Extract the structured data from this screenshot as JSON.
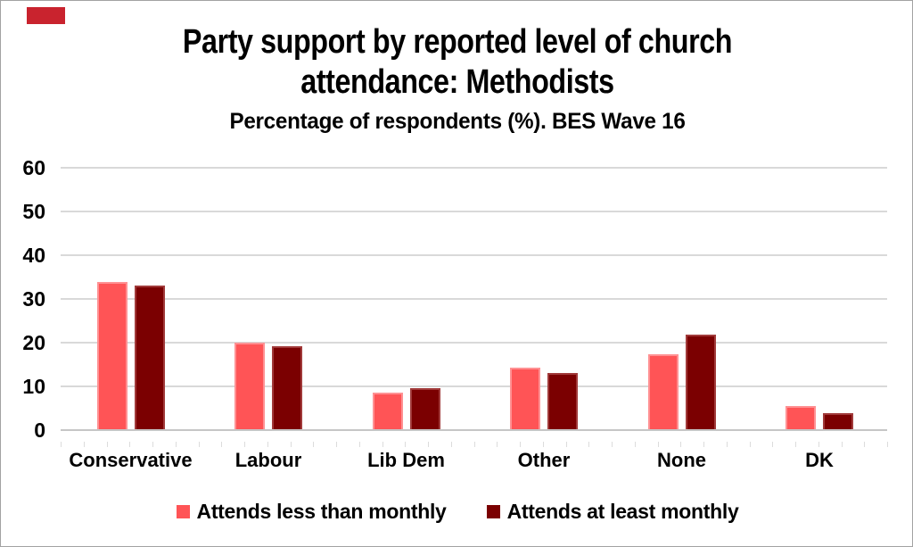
{
  "red_marker": {
    "color": "#c9232e"
  },
  "title": {
    "line1": "Party support by reported level of church",
    "line2": "attendance: Methodists",
    "subtitle": "Percentage of respondents (%). BES Wave 16"
  },
  "chart_data": {
    "type": "bar",
    "title": "Party support by reported level of church attendance: Methodists",
    "subtitle": "Percentage of respondents (%). BES Wave 16",
    "categories": [
      "Conservative",
      "Labour",
      "Lib Dem",
      "Other",
      "None",
      "DK"
    ],
    "series": [
      {
        "name": "Attends less than monthly",
        "color": "#ff5456",
        "border_color": "#ff9193",
        "values": [
          33.8,
          19.8,
          8.5,
          14.2,
          17.3,
          5.5
        ]
      },
      {
        "name": "Attends at least monthly",
        "color": "#7b0001",
        "border_color": "#a13a3a",
        "values": [
          32.9,
          19.0,
          9.4,
          13.0,
          21.7,
          3.7
        ]
      }
    ],
    "xlabel": "",
    "ylabel": "",
    "ylim": [
      0,
      60
    ],
    "yticks": [
      0,
      10,
      20,
      30,
      40,
      50,
      60
    ],
    "grid": true,
    "legend_position": "bottom"
  },
  "colors": {
    "gridline": "#d9d9d9",
    "axis_line": "#c6c6c6",
    "text": "#000000",
    "frame_border": "#a3a3a3",
    "background": "#ffffff"
  }
}
